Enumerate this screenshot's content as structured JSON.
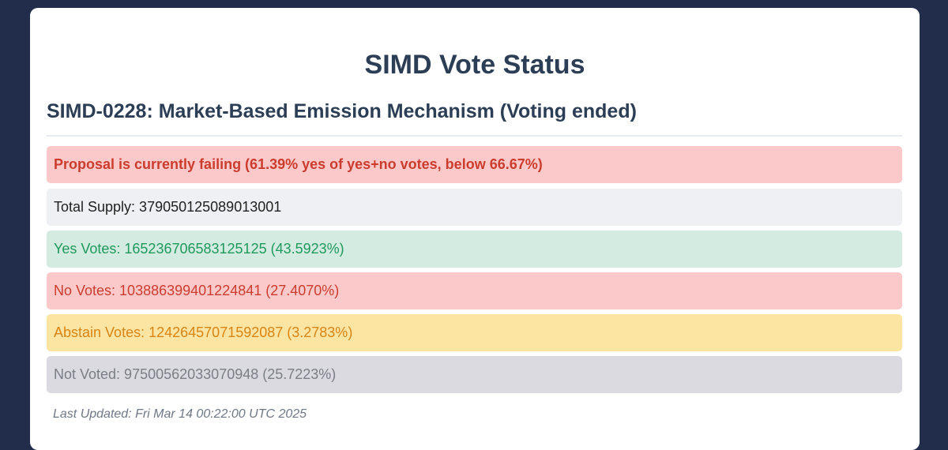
{
  "page": {
    "title": "SIMD Vote Status"
  },
  "proposal": {
    "title": "SIMD-0228: Market-Based Emission Mechanism (Voting ended)",
    "status_text": "Proposal is currently failing (61.39% yes of yes+no votes, below 66.67%)",
    "rows": {
      "total_supply": "Total Supply: 379050125089013001",
      "yes_votes": "Yes Votes: 165236706583125125 (43.5923%)",
      "no_votes": "No Votes: 103886399401224841 (27.4070%)",
      "abstain_votes": "Abstain Votes: 12426457071592087 (3.2783%)",
      "not_voted": "Not Voted: 97500562033070948 (25.7223%)"
    },
    "last_updated": "Last Updated: Fri Mar 14 00:22:00 UTC 2025"
  },
  "colors": {
    "background": "#212d4b",
    "card": "#ffffff",
    "heading": "#2c3e55",
    "failing_bg": "#fbc9ca",
    "failing_text": "#cb3c2d",
    "yes_bg": "#d4ebe2",
    "yes_text": "#1f9a5c",
    "abstain_bg": "#fce4a2",
    "abstain_text": "#d88514",
    "not_voted_bg": "#dadae0",
    "not_voted_text": "#7c7e86"
  }
}
